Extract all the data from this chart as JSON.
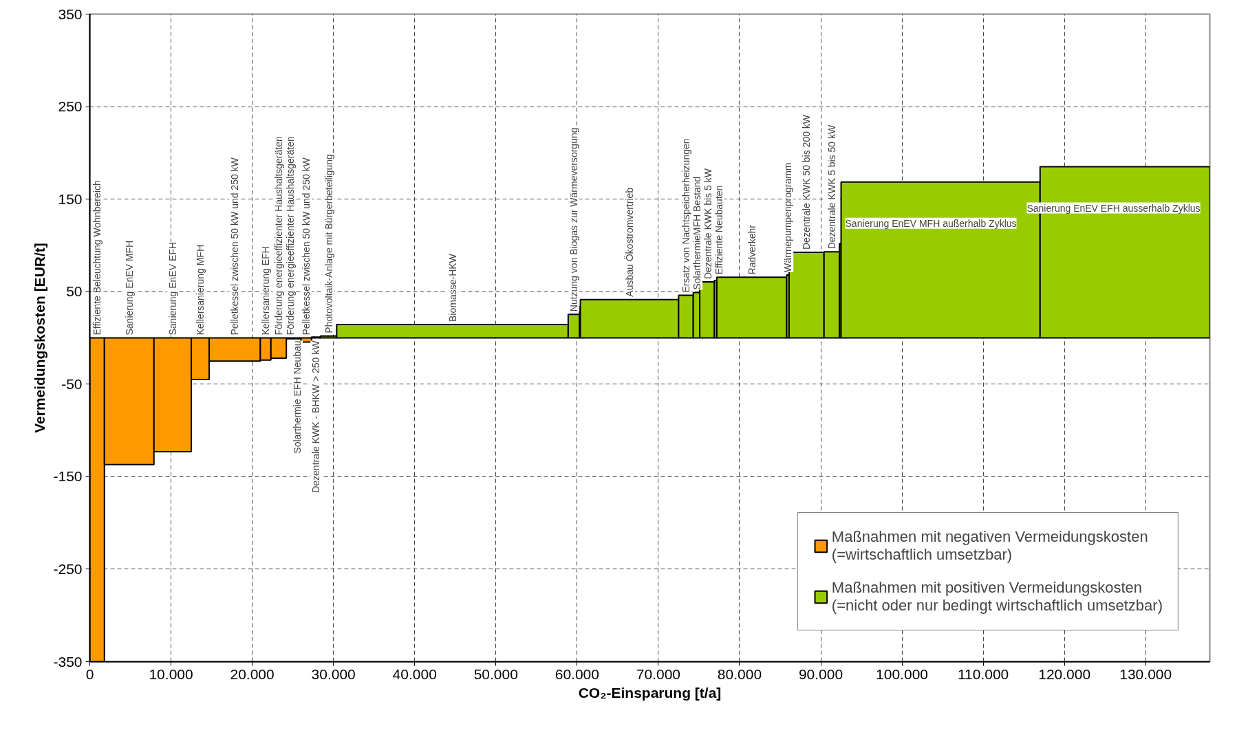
{
  "chart_data": {
    "type": "bar",
    "xlabel": "CO₂-Einsparung [t/a]",
    "ylabel": "Vermeidungskosten [EUR/t]",
    "series": [
      {
        "name": "Maßnahmen mit negativen Vermeidungskosten\n(=wirtschaftlich umsetzbar)",
        "color": "#ff9900",
        "x": [
          900,
          4850,
          10200,
          13600,
          17850,
          21650,
          23250,
          24650,
          25550,
          26650
        ],
        "values": [
          -350,
          -137,
          -123,
          -45,
          -25,
          -24,
          -22,
          -1,
          -1,
          -4.5
        ],
        "value_labels": [
          "Effiziente Beleuchtung Wohnbereich",
          "Sanierung EnEV MFH",
          "Sanierung EnEV EFH",
          "Kellersanierung MFH",
          "Pelletkessel zwischen 50 kW und 250 kW",
          "Kellersanierung EFH",
          "Förderung energieeffizienter Haushaltsgeräten",
          "Förderung energieeffizienter Haushaltsgeräten",
          "Solarthermie EFH Neubau",
          "Pelletkessel zwischen 50 kW und 250 kW"
        ]
      },
      {
        "name": "Maßnahmen mit positiven Vermeidungskosten\n(=nicht oder nur bedingt wirtschaftlich umsetzbar)",
        "color": "#99cc00",
        "x": [
          27850,
          29400,
          44650,
          59600,
          60350,
          66450,
          73400,
          74700,
          76000,
          77050,
          81500,
          85950,
          88250,
          91350,
          92400,
          104750,
          127450
        ],
        "values": [
          1,
          2,
          14.5,
          25.5,
          34,
          41.5,
          46,
          49,
          60.5,
          62,
          65.5,
          68,
          92.5,
          93,
          102,
          168.5,
          185
        ],
        "value_labels": [
          "Dezentrale KWK - BHKW > 250 kW",
          "Photovoltaik-Anlage mit Bürgerbeteiligung",
          "Biomasse-HKW",
          "Nutzung von Biogas zur Wärmeversorgung",
          null,
          "Ausbau Ökostromvertrieb",
          "Ersatz von Nachtspeicherheizungen",
          "SolarthermieMFH Bestand",
          "Dezentrale KWK bis 5 kW",
          "Effiziente Neubauten",
          "Radverkehr",
          "Wärmepumpenprogramm",
          "Dezentrale KWK 50 bis 200 kW",
          "Dezentrale KWK 5 bis 50 kW",
          null,
          "Sanierung EnEV MFH außerhalb Zyklus",
          "Sanierung EnEV EFH ausserhalb Zyklus"
        ]
      }
    ],
    "xlim": [
      0,
      137900
    ],
    "ylim": [
      -350,
      350
    ],
    "xticks": [
      0,
      {
        "value": 10000,
        "label": "10.000"
      },
      {
        "value": 20000,
        "label": "20.000"
      },
      {
        "value": 30000,
        "label": "30.000"
      },
      {
        "value": 40000,
        "label": "40.000"
      },
      {
        "value": 50000,
        "label": "50.000"
      },
      {
        "value": 60000,
        "label": "60.000"
      },
      {
        "value": 70000,
        "label": "70.000"
      },
      {
        "value": 80000,
        "label": "80.000"
      },
      {
        "value": 90000,
        "label": "90.000"
      },
      {
        "value": 100000,
        "label": "100.000"
      },
      {
        "value": 110000,
        "label": "110.000"
      },
      {
        "value": 120000,
        "label": "120.000"
      },
      {
        "value": 130000,
        "label": "130.000"
      }
    ],
    "yticks": [
      -350,
      -250,
      -150,
      -50,
      50,
      150,
      250,
      350
    ],
    "grid": true,
    "legend": "bottom right"
  }
}
